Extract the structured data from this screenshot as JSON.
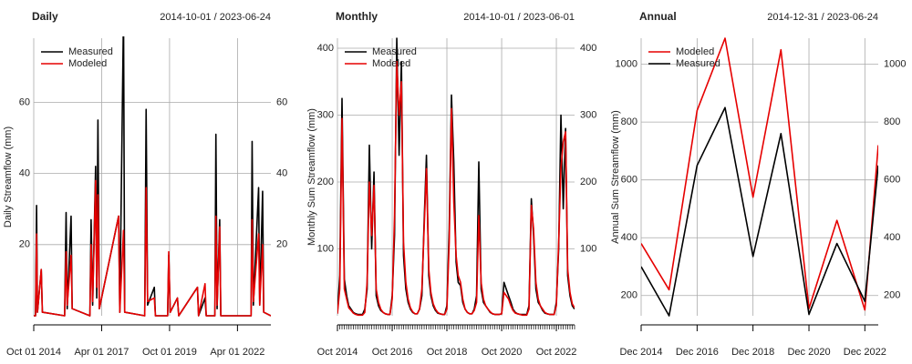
{
  "chart_data": [
    {
      "type": "line",
      "title": "Daily",
      "subtitle": "2014-10-01 / 2023-06-24",
      "ylabel": "Daily Streamflow (mm)",
      "x": [
        "2014-10-01",
        "2014-10-25",
        "2014-11-08",
        "2014-11-20",
        "2015-01-10",
        "2015-01-25",
        "2015-11-20",
        "2015-12-10",
        "2015-12-25",
        "2016-02-15",
        "2016-03-01",
        "2016-10-25",
        "2016-11-10",
        "2016-12-01",
        "2017-01-10",
        "2017-01-25",
        "2017-02-10",
        "2017-03-01",
        "2017-11-15",
        "2017-12-01",
        "2018-01-20",
        "2018-02-05",
        "2018-11-01",
        "2018-11-20",
        "2018-12-10",
        "2019-03-10",
        "2019-03-25",
        "2019-09-05",
        "2019-09-20",
        "2019-10-10",
        "2020-01-15",
        "2020-02-01",
        "2020-10-10",
        "2020-10-25",
        "2021-01-20",
        "2021-02-05",
        "2021-06-01",
        "2021-06-15",
        "2021-07-01",
        "2021-08-05",
        "2021-08-20",
        "2022-10-01",
        "2022-10-15",
        "2022-11-01",
        "2023-01-10",
        "2023-01-25",
        "2023-03-05",
        "2023-03-20",
        "2023-06-24"
      ],
      "series": [
        {
          "name": "Measured",
          "color": "#000000",
          "values": [
            0,
            0,
            31,
            1,
            13,
            1,
            0,
            29,
            2,
            28,
            2,
            0,
            27,
            3,
            42,
            5,
            55,
            2,
            28,
            1,
            85,
            1,
            0,
            58,
            3,
            8,
            0,
            0,
            17,
            1,
            5,
            0,
            8,
            0,
            5,
            0,
            0,
            51,
            2,
            27,
            0,
            0,
            49,
            3,
            36,
            3,
            35,
            1,
            0
          ]
        },
        {
          "name": "Modeled",
          "color": "#e60000",
          "values": [
            0,
            0,
            23,
            1,
            13,
            1,
            0,
            18,
            3,
            17,
            2,
            0,
            20,
            4,
            38,
            8,
            34,
            2,
            28,
            1,
            24,
            1,
            0,
            36,
            4,
            5,
            0,
            0,
            18,
            1,
            5,
            0,
            8,
            0,
            9,
            0,
            0,
            28,
            3,
            25,
            0,
            0,
            27,
            4,
            23,
            3,
            20,
            1,
            0
          ]
        }
      ],
      "xlim": [
        "2014-10-01",
        "2023-06-24"
      ],
      "xticks": [
        {
          "value": "2014-10-01",
          "label": "Oct 01 2014"
        },
        {
          "value": "2017-04-01",
          "label": "Apr 01 2017"
        },
        {
          "value": "2019-10-01",
          "label": "Oct 01 2019"
        },
        {
          "value": "2022-04-01",
          "label": "Apr 01 2022"
        }
      ],
      "ylim": [
        0,
        78
      ],
      "yticks": [
        20,
        40,
        60
      ],
      "grid": true,
      "legend": "top-left"
    },
    {
      "type": "line",
      "title": "Monthly",
      "subtitle": "2014-10-01 / 2023-06-01",
      "ylabel": "Monthly Sum Streamflow (mm)",
      "x": [
        "2014-10",
        "2014-11",
        "2014-12",
        "2015-01",
        "2015-02",
        "2015-03",
        "2015-04",
        "2015-05",
        "2015-06",
        "2015-07",
        "2015-08",
        "2015-09",
        "2015-10",
        "2015-11",
        "2015-12",
        "2016-01",
        "2016-02",
        "2016-03",
        "2016-04",
        "2016-05",
        "2016-06",
        "2016-07",
        "2016-08",
        "2016-09",
        "2016-10",
        "2016-11",
        "2016-12",
        "2017-01",
        "2017-02",
        "2017-03",
        "2017-04",
        "2017-05",
        "2017-06",
        "2017-07",
        "2017-08",
        "2017-09",
        "2017-10",
        "2017-11",
        "2017-12",
        "2018-01",
        "2018-02",
        "2018-03",
        "2018-04",
        "2018-05",
        "2018-06",
        "2018-07",
        "2018-08",
        "2018-09",
        "2018-10",
        "2018-11",
        "2018-12",
        "2019-01",
        "2019-02",
        "2019-03",
        "2019-04",
        "2019-05",
        "2019-06",
        "2019-07",
        "2019-08",
        "2019-09",
        "2019-10",
        "2019-11",
        "2019-12",
        "2020-01",
        "2020-02",
        "2020-03",
        "2020-04",
        "2020-05",
        "2020-06",
        "2020-07",
        "2020-08",
        "2020-09",
        "2020-10",
        "2020-11",
        "2020-12",
        "2021-01",
        "2021-02",
        "2021-03",
        "2021-04",
        "2021-05",
        "2021-06",
        "2021-07",
        "2021-08",
        "2021-09",
        "2021-10",
        "2021-11",
        "2021-12",
        "2022-01",
        "2022-02",
        "2022-03",
        "2022-04",
        "2022-05",
        "2022-06",
        "2022-07",
        "2022-08",
        "2022-09",
        "2022-10",
        "2022-11",
        "2022-12",
        "2023-01",
        "2023-02",
        "2023-03",
        "2023-04",
        "2023-05",
        "2023-06"
      ],
      "series": [
        {
          "name": "Measured",
          "color": "#000000",
          "values": [
            5,
            60,
            325,
            55,
            30,
            15,
            10,
            5,
            3,
            2,
            2,
            2,
            10,
            40,
            255,
            100,
            215,
            30,
            15,
            8,
            5,
            3,
            2,
            2,
            30,
            120,
            415,
            240,
            380,
            90,
            40,
            20,
            10,
            5,
            3,
            3,
            10,
            30,
            140,
            240,
            60,
            30,
            15,
            8,
            4,
            3,
            2,
            2,
            15,
            130,
            330,
            230,
            80,
            50,
            45,
            20,
            10,
            5,
            3,
            3,
            10,
            30,
            230,
            40,
            20,
            15,
            10,
            5,
            3,
            2,
            2,
            2,
            3,
            50,
            40,
            30,
            20,
            10,
            5,
            3,
            2,
            2,
            2,
            2,
            15,
            175,
            120,
            40,
            20,
            15,
            8,
            4,
            3,
            2,
            2,
            2,
            20,
            100,
            300,
            160,
            280,
            60,
            30,
            15,
            10
          ]
        },
        {
          "name": "Modeled",
          "color": "#e60000",
          "values": [
            3,
            40,
            295,
            40,
            25,
            12,
            8,
            4,
            2,
            1,
            1,
            1,
            5,
            50,
            200,
            120,
            195,
            40,
            20,
            10,
            5,
            3,
            2,
            2,
            25,
            150,
            380,
            300,
            350,
            110,
            50,
            25,
            12,
            6,
            3,
            3,
            10,
            40,
            130,
            220,
            70,
            35,
            18,
            10,
            5,
            3,
            2,
            2,
            10,
            110,
            310,
            170,
            90,
            60,
            50,
            25,
            10,
            5,
            3,
            3,
            8,
            20,
            150,
            50,
            25,
            15,
            10,
            6,
            3,
            2,
            2,
            2,
            3,
            35,
            30,
            25,
            15,
            8,
            4,
            3,
            2,
            1,
            1,
            1,
            10,
            165,
            130,
            50,
            25,
            15,
            10,
            5,
            3,
            2,
            2,
            2,
            15,
            110,
            220,
            260,
            275,
            70,
            35,
            18,
            12
          ]
        }
      ],
      "xlim": [
        "2014-10",
        "2023-06"
      ],
      "xticks": [
        {
          "value": "2014-10",
          "label": "Oct 2014"
        },
        {
          "value": "2016-10",
          "label": "Oct 2016"
        },
        {
          "value": "2018-10",
          "label": "Oct 2018"
        },
        {
          "value": "2020-10",
          "label": "Oct 2020"
        },
        {
          "value": "2022-10",
          "label": "Oct 2022"
        }
      ],
      "ylim": [
        0,
        415
      ],
      "yticks": [
        100,
        200,
        300,
        400
      ],
      "grid": true,
      "legend": "top-left",
      "minor_xticks": true
    },
    {
      "type": "line",
      "title": "Annual",
      "subtitle": "2014-12-31 / 2023-06-24",
      "ylabel": "Annual Sum Streamflow (mm)",
      "x": [
        "2014-12-31",
        "2015-12-31",
        "2016-12-31",
        "2017-12-31",
        "2018-12-31",
        "2019-12-31",
        "2020-12-31",
        "2021-12-31",
        "2022-12-31",
        "2023-06-24"
      ],
      "series": [
        {
          "name": "Modeled",
          "color": "#e60000",
          "values": [
            380,
            220,
            840,
            1090,
            540,
            1050,
            155,
            460,
            150,
            720
          ]
        },
        {
          "name": "Measured",
          "color": "#000000",
          "values": [
            300,
            130,
            650,
            850,
            335,
            760,
            135,
            380,
            180,
            650
          ]
        }
      ],
      "xlim": [
        "2014-12-31",
        "2023-06-24"
      ],
      "xticks": [
        {
          "value": "2014-12-31",
          "label": "Dec 2014"
        },
        {
          "value": "2016-12-31",
          "label": "Dec 2016"
        },
        {
          "value": "2018-12-31",
          "label": "Dec 2018"
        },
        {
          "value": "2020-12-31",
          "label": "Dec 2020"
        },
        {
          "value": "2022-12-31",
          "label": "Dec 2022"
        }
      ],
      "ylim": [
        130,
        1090
      ],
      "yticks": [
        200,
        400,
        600,
        800,
        1000
      ],
      "grid": true,
      "legend": "top-left"
    }
  ]
}
